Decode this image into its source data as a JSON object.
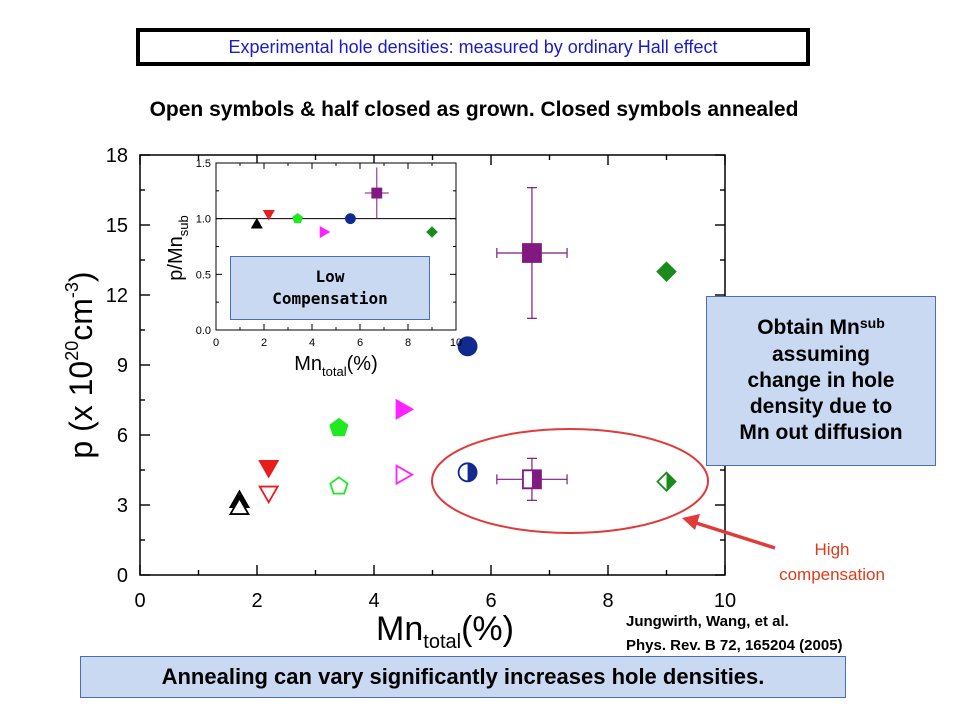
{
  "header": {
    "title": "Experimental hole densities: measured by ordinary Hall effect",
    "subtitle": "Open symbols & half closed as grown. Closed symbols annealed"
  },
  "colors": {
    "title_text": "#1a1ad0",
    "box_fill": "#c9d9f1",
    "box_border": "#4a6fb0",
    "ellipse": "#e03a3a",
    "arrow": "#e03a3a",
    "note_text": "#e03a1a"
  },
  "chart_data": [
    {
      "type": "scatter",
      "xlabel_main": "Mn",
      "xlabel_sub": "total",
      "xlabel_unit": "(%)",
      "ylabel_pre": "p (x 10",
      "ylabel_exp": "20",
      "ylabel_unit": "cm",
      "ylabel_unit_exp": "-3",
      "ylabel_post": ")",
      "xlim": [
        0,
        10
      ],
      "ylim": [
        0,
        18
      ],
      "xticks": [
        "0",
        "2",
        "4",
        "6",
        "8",
        "10"
      ],
      "yticks": [
        "0",
        "3",
        "6",
        "9",
        "12",
        "15",
        "18"
      ],
      "grid": false,
      "points": [
        {
          "x": 1.7,
          "y": 3.2,
          "marker": "triangle-up",
          "fill": "full",
          "color": "#000000"
        },
        {
          "x": 1.7,
          "y": 2.9,
          "marker": "triangle-up",
          "fill": "open",
          "color": "#000000"
        },
        {
          "x": 2.2,
          "y": 4.6,
          "marker": "triangle-down",
          "fill": "full",
          "color": "#e81c1c"
        },
        {
          "x": 2.2,
          "y": 3.5,
          "marker": "triangle-down",
          "fill": "open",
          "color": "#e81c1c"
        },
        {
          "x": 3.4,
          "y": 6.3,
          "marker": "pentagon",
          "fill": "full",
          "color": "#22e822"
        },
        {
          "x": 3.4,
          "y": 3.8,
          "marker": "pentagon",
          "fill": "open",
          "color": "#22e822"
        },
        {
          "x": 4.5,
          "y": 7.1,
          "marker": "triangle-right",
          "fill": "full",
          "color": "#ff22ff"
        },
        {
          "x": 4.5,
          "y": 4.3,
          "marker": "triangle-right",
          "fill": "open",
          "color": "#ff22ff"
        },
        {
          "x": 5.6,
          "y": 9.8,
          "marker": "circle",
          "fill": "full",
          "color": "#102a90"
        },
        {
          "x": 5.6,
          "y": 4.4,
          "marker": "circle",
          "fill": "half",
          "color": "#102a90"
        },
        {
          "x": 6.7,
          "y": 13.8,
          "marker": "square",
          "fill": "full",
          "color": "#801a80",
          "xerr": 0.6,
          "yerr": 2.8
        },
        {
          "x": 6.7,
          "y": 4.1,
          "marker": "square",
          "fill": "half",
          "color": "#801a80",
          "xerr": 0.6,
          "yerr": 0.9
        },
        {
          "x": 9.0,
          "y": 13.0,
          "marker": "diamond",
          "fill": "full",
          "color": "#1a8a1a"
        },
        {
          "x": 9.0,
          "y": 4.0,
          "marker": "diamond",
          "fill": "half",
          "color": "#1a8a1a"
        }
      ]
    },
    {
      "type": "scatter",
      "xlabel_main": "Mn",
      "xlabel_sub": "total",
      "xlabel_unit": "(%)",
      "ylabel_main": "p/Mn",
      "ylabel_sub": "sub",
      "xlim": [
        0,
        10
      ],
      "ylim": [
        0,
        1.5
      ],
      "xticks": [
        "0",
        "2",
        "4",
        "6",
        "8",
        "10"
      ],
      "yticks": [
        "0.0",
        "0.5",
        "1.0",
        "1.5"
      ],
      "reference_line": 1.0,
      "points": [
        {
          "x": 1.7,
          "y": 0.95,
          "marker": "triangle-up",
          "color": "#000000"
        },
        {
          "x": 2.2,
          "y": 1.04,
          "marker": "triangle-down",
          "color": "#e81c1c"
        },
        {
          "x": 3.4,
          "y": 1.0,
          "marker": "pentagon",
          "color": "#22e822"
        },
        {
          "x": 4.5,
          "y": 0.88,
          "marker": "triangle-right",
          "color": "#ff22ff"
        },
        {
          "x": 5.6,
          "y": 1.0,
          "marker": "circle",
          "color": "#102a90"
        },
        {
          "x": 6.7,
          "y": 1.23,
          "marker": "square",
          "color": "#801a80",
          "xerr": 0.5,
          "yerr": 0.23
        },
        {
          "x": 9.0,
          "y": 0.88,
          "marker": "diamond",
          "color": "#1a8a1a"
        }
      ]
    }
  ],
  "annotations": {
    "low_compensation_line1": "Low",
    "low_compensation_line2": "Compensation",
    "obtain_prefix": "Obtain Mn",
    "obtain_sub": "sub",
    "obtain_line2": "assuming",
    "obtain_line3": "change in hole",
    "obtain_line4": "density due to",
    "obtain_line5": "Mn out diffusion",
    "high_comp_line1": "High",
    "high_comp_line2": "compensation",
    "citation_line1": "Jungwirth, Wang, et al.",
    "citation_line2": "Phys. Rev. B 72, 165204 (2005)",
    "annealing": "Annealing can vary significantly increases hole densities."
  }
}
